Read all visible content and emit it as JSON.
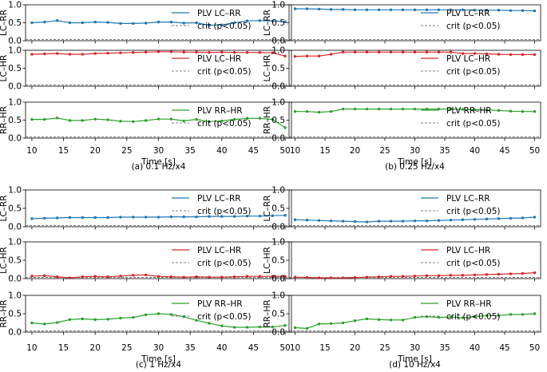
{
  "figure": {
    "x_values": [
      10,
      12,
      14,
      16,
      18,
      20,
      22,
      24,
      26,
      28,
      30,
      32,
      34,
      36,
      38,
      40,
      42,
      44,
      46,
      48,
      50
    ],
    "xticks": [
      10,
      15,
      20,
      25,
      30,
      35,
      40,
      45,
      50
    ],
    "yticks": [
      0.0,
      0.5,
      1.0
    ],
    "xlabel": "Time [s]",
    "crit_label": "crit (p<0.05)",
    "crit_value": 0.03
  },
  "chart_data": [
    {
      "type": "line",
      "caption": "(a) 0.1 Hz/x4",
      "xlabel": "Time [s]",
      "xlim": [
        9,
        51
      ],
      "ylim": [
        0,
        1
      ],
      "series": [
        {
          "panel": "LC–RR",
          "name": "PLV LC–RR",
          "color": "#1f77b4",
          "values": [
            0.5,
            0.52,
            0.56,
            0.5,
            0.5,
            0.52,
            0.51,
            0.48,
            0.48,
            0.49,
            0.52,
            0.52,
            0.49,
            0.5,
            0.43,
            0.44,
            0.5,
            0.55,
            0.56,
            0.55,
            0.53
          ]
        },
        {
          "panel": "LC–HR",
          "name": "PLV LC–HR",
          "color": "#d62728",
          "values": [
            0.89,
            0.9,
            0.91,
            0.89,
            0.89,
            0.91,
            0.92,
            0.93,
            0.94,
            0.95,
            0.96,
            0.96,
            0.95,
            0.95,
            0.94,
            0.95,
            0.94,
            0.94,
            0.94,
            0.93,
            0.84
          ]
        },
        {
          "panel": "RR–HR",
          "name": "PLV RR–HR",
          "color": "#2ca02c",
          "values": [
            0.52,
            0.52,
            0.56,
            0.49,
            0.49,
            0.53,
            0.51,
            0.47,
            0.46,
            0.49,
            0.53,
            0.53,
            0.48,
            0.52,
            0.46,
            0.48,
            0.52,
            0.55,
            0.55,
            0.52,
            0.29
          ]
        }
      ]
    },
    {
      "type": "line",
      "caption": "(b) 0.25 Hz/x4",
      "xlabel": "Time [s]",
      "xlim": [
        9,
        51
      ],
      "ylim": [
        0,
        1
      ],
      "series": [
        {
          "panel": "LC–RR",
          "name": "PLV LC–RR",
          "color": "#1f77b4",
          "values": [
            0.89,
            0.89,
            0.88,
            0.87,
            0.87,
            0.86,
            0.86,
            0.86,
            0.86,
            0.86,
            0.86,
            0.86,
            0.86,
            0.86,
            0.86,
            0.85,
            0.85,
            0.85,
            0.84,
            0.84,
            0.83
          ]
        },
        {
          "panel": "LC–HR",
          "name": "PLV LC–HR",
          "color": "#d62728",
          "values": [
            0.83,
            0.84,
            0.84,
            0.89,
            0.95,
            0.95,
            0.95,
            0.95,
            0.95,
            0.95,
            0.95,
            0.95,
            0.95,
            0.95,
            0.91,
            0.91,
            0.9,
            0.89,
            0.88,
            0.88,
            0.88
          ]
        },
        {
          "panel": "RR–HR",
          "name": "PLV RR–HR",
          "color": "#2ca02c",
          "values": [
            0.74,
            0.74,
            0.72,
            0.74,
            0.81,
            0.81,
            0.81,
            0.81,
            0.81,
            0.81,
            0.81,
            0.81,
            0.81,
            0.81,
            0.8,
            0.79,
            0.78,
            0.77,
            0.75,
            0.74,
            0.74
          ]
        }
      ]
    },
    {
      "type": "line",
      "caption": "(c) 1 Hz/x4",
      "xlabel": "Time [s]",
      "xlim": [
        9,
        51
      ],
      "ylim": [
        0,
        1
      ],
      "series": [
        {
          "panel": "LC–RR",
          "name": "PLV LC–RR",
          "color": "#1f77b4",
          "values": [
            0.22,
            0.23,
            0.24,
            0.25,
            0.25,
            0.25,
            0.25,
            0.26,
            0.26,
            0.26,
            0.26,
            0.27,
            0.27,
            0.27,
            0.28,
            0.28,
            0.28,
            0.29,
            0.29,
            0.3,
            0.31
          ]
        },
        {
          "panel": "LC–HR",
          "name": "PLV LC–HR",
          "color": "#d62728",
          "values": [
            0.07,
            0.08,
            0.05,
            0.02,
            0.05,
            0.06,
            0.05,
            0.07,
            0.09,
            0.1,
            0.06,
            0.05,
            0.04,
            0.05,
            0.04,
            0.04,
            0.05,
            0.06,
            0.06,
            0.06,
            0.06
          ]
        },
        {
          "panel": "RR–HR",
          "name": "PLV RR–HR",
          "color": "#2ca02c",
          "values": [
            0.25,
            0.22,
            0.26,
            0.34,
            0.36,
            0.34,
            0.35,
            0.38,
            0.4,
            0.47,
            0.5,
            0.48,
            0.42,
            0.32,
            0.24,
            0.17,
            0.13,
            0.13,
            0.14,
            0.14,
            0.18
          ]
        }
      ]
    },
    {
      "type": "line",
      "caption": "(d) 10 Hz/x4",
      "xlabel": "Time [s]",
      "xlim": [
        9,
        51
      ],
      "ylim": [
        0,
        1
      ],
      "series": [
        {
          "panel": "LC–RR",
          "name": "PLV LC–RR",
          "color": "#1f77b4",
          "values": [
            0.19,
            0.18,
            0.17,
            0.16,
            0.15,
            0.14,
            0.13,
            0.15,
            0.15,
            0.15,
            0.16,
            0.16,
            0.17,
            0.18,
            0.19,
            0.2,
            0.21,
            0.22,
            0.23,
            0.24,
            0.26
          ]
        },
        {
          "panel": "LC–HR",
          "name": "PLV LC–HR",
          "color": "#d62728",
          "values": [
            0.04,
            0.03,
            0.02,
            0.02,
            0.02,
            0.03,
            0.04,
            0.05,
            0.06,
            0.06,
            0.07,
            0.08,
            0.08,
            0.09,
            0.09,
            0.1,
            0.11,
            0.12,
            0.13,
            0.14,
            0.16
          ]
        },
        {
          "panel": "RR–HR",
          "name": "PLV RR–HR",
          "color": "#2ca02c",
          "values": [
            0.12,
            0.1,
            0.22,
            0.23,
            0.25,
            0.31,
            0.36,
            0.34,
            0.33,
            0.33,
            0.4,
            0.42,
            0.4,
            0.41,
            0.39,
            0.42,
            0.45,
            0.45,
            0.48,
            0.48,
            0.5
          ]
        }
      ]
    }
  ]
}
